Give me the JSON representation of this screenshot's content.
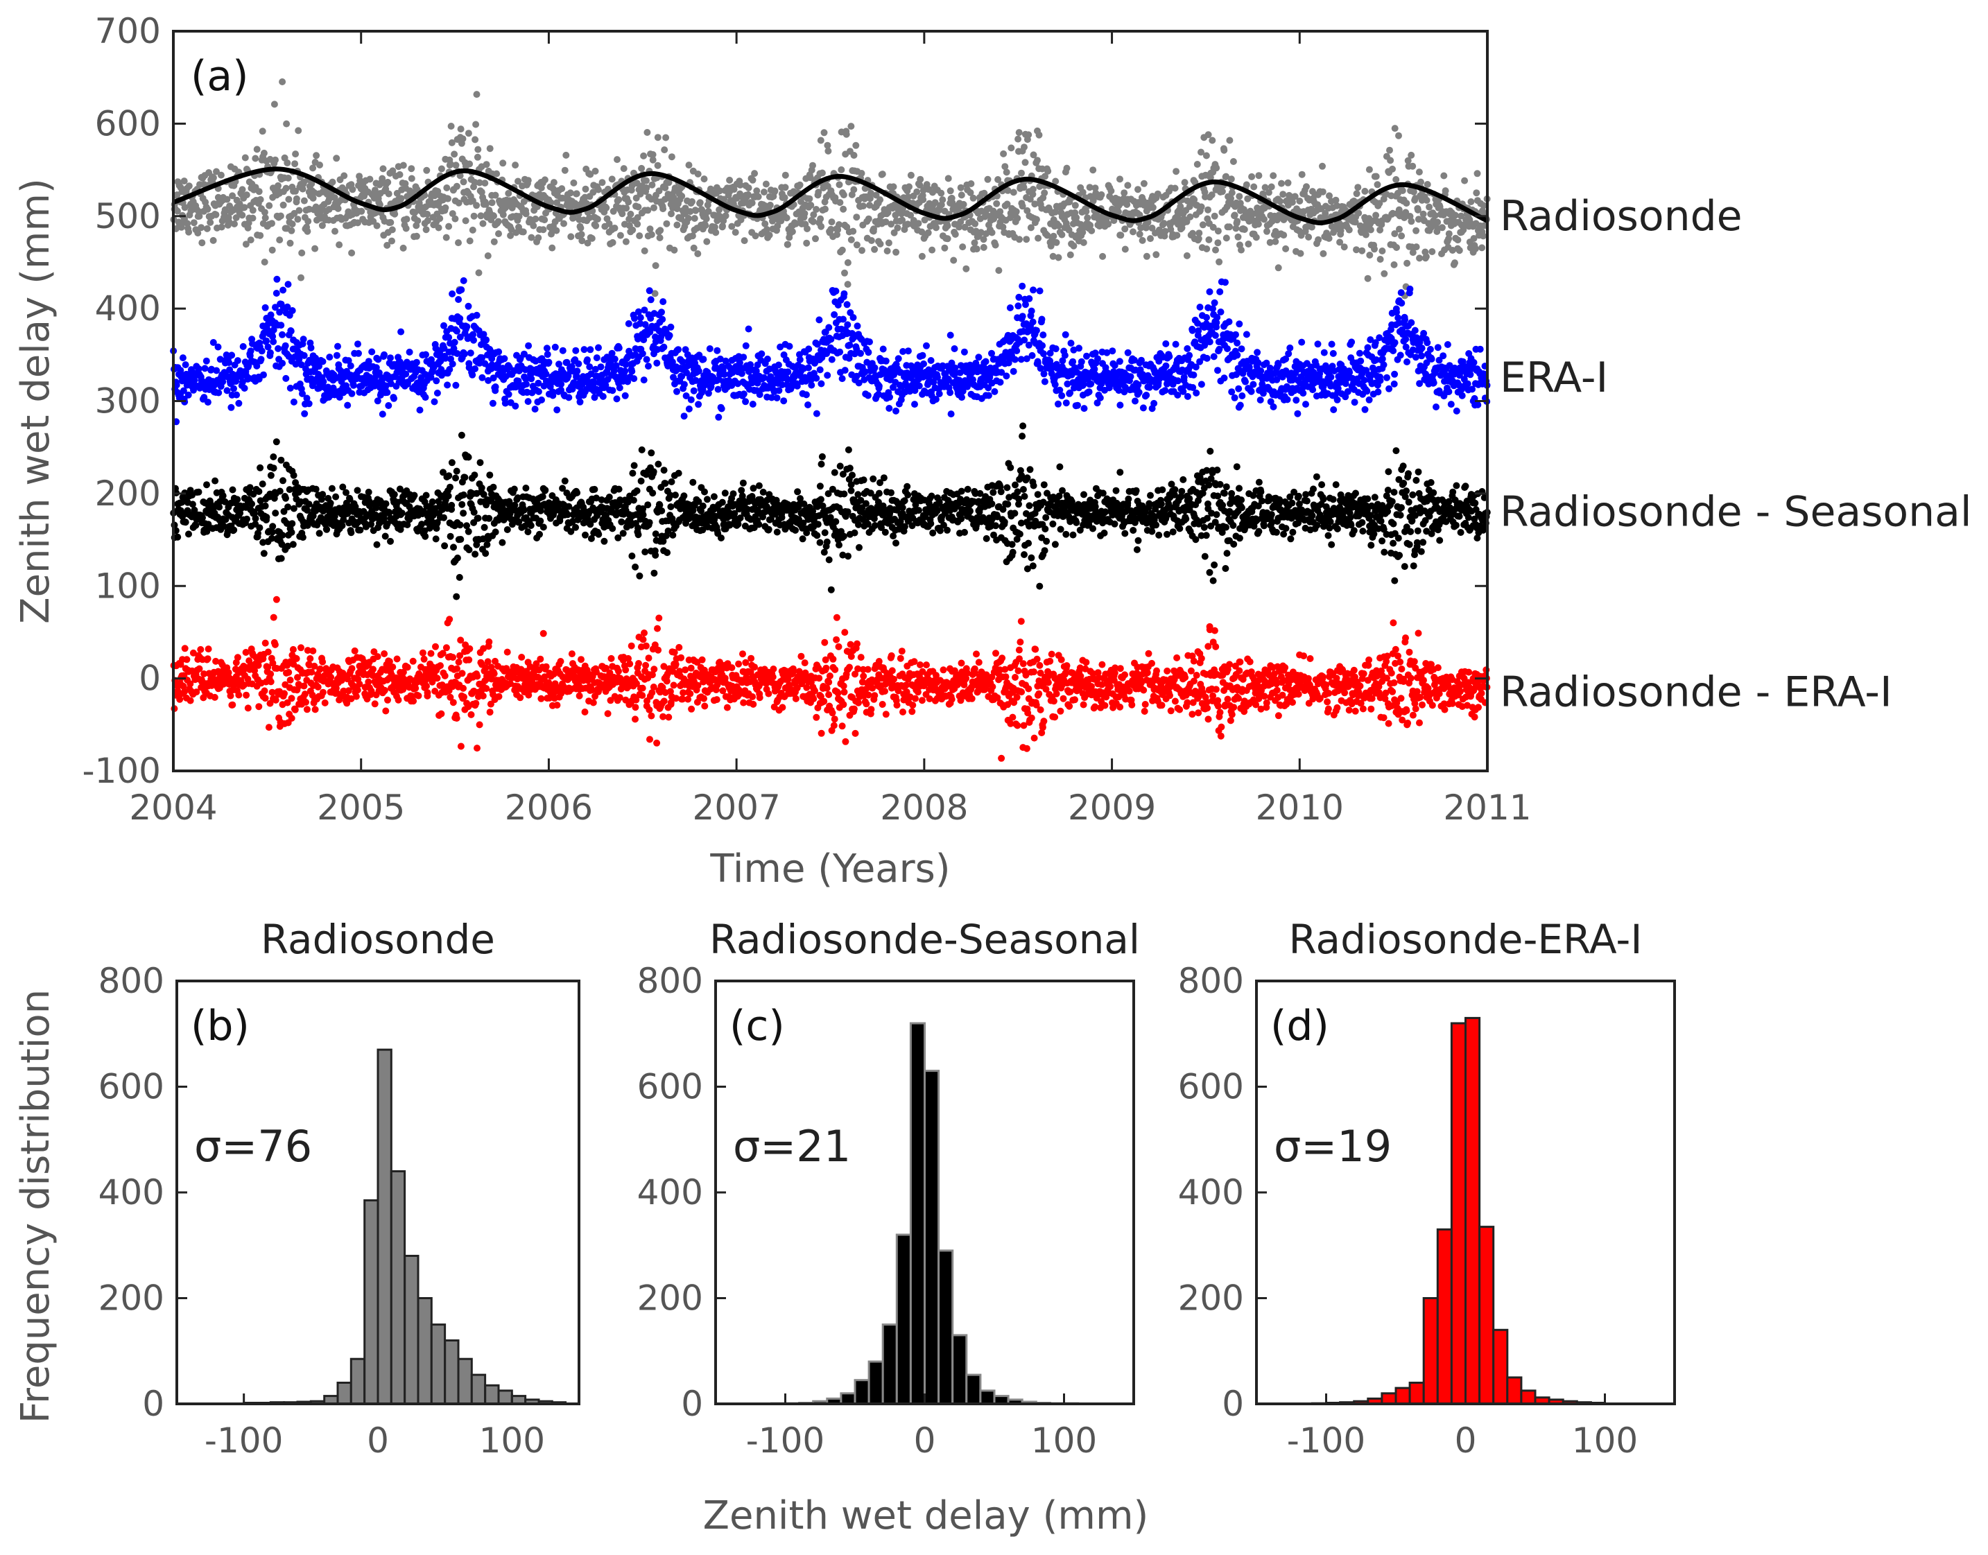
{
  "chart_data": [
    {
      "type": "scatter",
      "panel_label": "(a)",
      "xlabel": "Time (Years)",
      "ylabel": "Zenith wet delay (mm)",
      "xlim": [
        2004,
        2011
      ],
      "ylim": [
        -100,
        700
      ],
      "xticks": [
        2004,
        2005,
        2006,
        2007,
        2008,
        2009,
        2010,
        2011
      ],
      "yticks": [
        -100,
        0,
        100,
        200,
        300,
        400,
        500,
        600,
        700
      ],
      "grid": false,
      "series": [
        {
          "name": "Radiosonde",
          "label_y": 500,
          "color": "#808080",
          "baseline": [
            515,
            495
          ],
          "amplitude": 22,
          "noise_sd": 18,
          "summer_extra_sd": 22,
          "peak_phase": 0.55,
          "fit_line": {
            "color": "#000000",
            "points": [
              [
                2004.0,
                515
              ],
              [
                2004.55,
                551
              ],
              [
                2005.0,
                514
              ],
              [
                2005.2,
                510
              ],
              [
                2005.55,
                549
              ],
              [
                2006.0,
                510
              ],
              [
                2006.2,
                508
              ],
              [
                2006.55,
                546
              ],
              [
                2007.0,
                506
              ],
              [
                2007.2,
                505
              ],
              [
                2007.55,
                543
              ],
              [
                2008.0,
                503
              ],
              [
                2008.2,
                502
              ],
              [
                2008.55,
                540
              ],
              [
                2009.0,
                501
              ],
              [
                2009.2,
                499
              ],
              [
                2009.55,
                537
              ],
              [
                2010.0,
                498
              ],
              [
                2010.2,
                497
              ],
              [
                2010.55,
                534
              ],
              [
                2011.0,
                495
              ]
            ]
          }
        },
        {
          "name": "ERA-I",
          "label_y": 325,
          "color": "#0000ff",
          "baseline": [
            325,
            325
          ],
          "amplitude": 52,
          "noise_sd": 14,
          "summer_extra_sd": 12,
          "peak_phase": 0.55
        },
        {
          "name": "Radiosonde - Seasonal",
          "label_y": 180,
          "color": "#000000",
          "baseline": [
            180,
            180
          ],
          "amplitude": 0,
          "noise_sd": 12,
          "summer_extra_sd": 22,
          "peak_phase": 0.55
        },
        {
          "name": "Radiosonde - ERA-I",
          "label_y": -15,
          "color": "#ff0000",
          "baseline": [
            0,
            -10
          ],
          "amplitude": 0,
          "noise_sd": 12,
          "summer_extra_sd": 18,
          "peak_phase": 0.55
        }
      ]
    },
    {
      "type": "bar",
      "panel_label": "(b)",
      "title": "Radiosonde",
      "annotation": "σ=76",
      "color": "#808080",
      "edge_color": "#222222",
      "xlim": [
        -150,
        150
      ],
      "ylim": [
        0,
        800
      ],
      "xticks": [
        -100,
        0,
        100
      ],
      "yticks": [
        0,
        200,
        400,
        600,
        800
      ],
      "ylabel": "Frequency distribution",
      "bin_width": 10,
      "bin_centers": [
        -95,
        -85,
        -75,
        -65,
        -55,
        -45,
        -35,
        -25,
        -15,
        -5,
        5,
        15,
        25,
        35,
        45,
        55,
        65,
        75,
        85,
        95,
        105,
        115,
        125,
        135
      ],
      "values": [
        2,
        2,
        3,
        3,
        4,
        5,
        15,
        40,
        85,
        385,
        670,
        440,
        280,
        200,
        150,
        120,
        85,
        55,
        35,
        25,
        15,
        8,
        5,
        3
      ]
    },
    {
      "type": "bar",
      "panel_label": "(c)",
      "title": "Radiosonde-Seasonal",
      "annotation": "σ=21",
      "color": "#000000",
      "edge_color": "#888888",
      "xlim": [
        -150,
        150
      ],
      "ylim": [
        0,
        800
      ],
      "xticks": [
        -100,
        0,
        100
      ],
      "yticks": [
        0,
        200,
        400,
        600,
        800
      ],
      "bin_width": 10,
      "bin_centers": [
        -105,
        -95,
        -85,
        -75,
        -65,
        -55,
        -45,
        -35,
        -25,
        -15,
        -5,
        5,
        15,
        25,
        35,
        45,
        55,
        65,
        75,
        85,
        95,
        105
      ],
      "values": [
        1,
        1,
        2,
        5,
        10,
        20,
        45,
        80,
        150,
        320,
        720,
        630,
        290,
        130,
        55,
        25,
        15,
        8,
        4,
        2,
        1,
        1
      ]
    },
    {
      "type": "bar",
      "panel_label": "(d)",
      "title": "Radiosonde-ERA-I",
      "annotation": "σ=19",
      "color": "#ff0000",
      "edge_color": "#222222",
      "xlim": [
        -150,
        150
      ],
      "ylim": [
        0,
        800
      ],
      "xticks": [
        -100,
        0,
        100
      ],
      "yticks": [
        0,
        200,
        400,
        600,
        800
      ],
      "bin_width": 10,
      "bin_centers": [
        -105,
        -95,
        -85,
        -75,
        -65,
        -55,
        -45,
        -35,
        -25,
        -15,
        -5,
        5,
        15,
        25,
        35,
        45,
        55,
        65,
        75,
        85,
        95
      ],
      "values": [
        1,
        2,
        3,
        5,
        10,
        20,
        30,
        40,
        200,
        330,
        720,
        730,
        335,
        140,
        50,
        25,
        12,
        8,
        5,
        3,
        2
      ]
    }
  ],
  "shared_xlabel": "Zenith wet delay (mm)"
}
